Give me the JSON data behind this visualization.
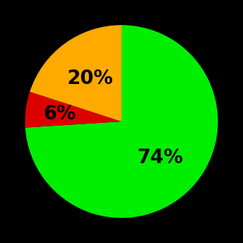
{
  "slices": [
    74,
    6,
    20
  ],
  "colors": [
    "#00ee00",
    "#dd0000",
    "#ffaa00"
  ],
  "labels": [
    "74%",
    "6%",
    "20%"
  ],
  "label_radii": [
    0.55,
    0.65,
    0.55
  ],
  "background_color": "#000000",
  "startangle": 90,
  "counterclock": false,
  "label_fontsize": 20,
  "label_fontweight": "bold"
}
